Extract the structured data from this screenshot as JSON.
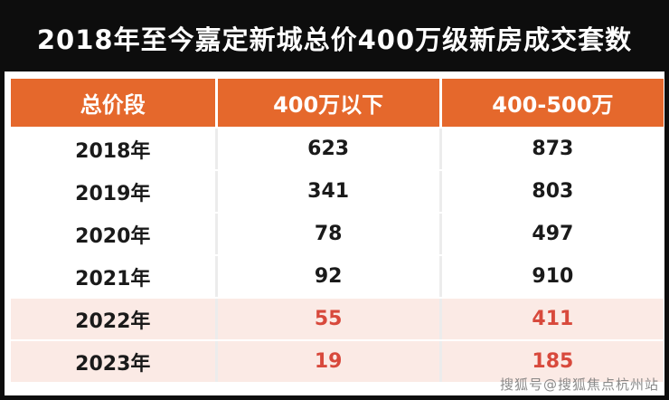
{
  "title": "2018年至今嘉定新城总价400万级新房成交套数",
  "watermark": "搜狐号@搜狐焦点杭州站",
  "colors": {
    "title_bg": "#0d0d0d",
    "header_bg": "#e5682c",
    "header_text": "#ffffff",
    "highlight_row_bg": "#fbeae5",
    "highlight_number_text": "#d8493c",
    "body_text": "#1a1a1a"
  },
  "chart_data": {
    "type": "table",
    "title": "2018年至今嘉定新城总价400万级新房成交套数",
    "columns": [
      "总价段",
      "400万以下",
      "400-500万"
    ],
    "rows": [
      {
        "cells": [
          "2018年",
          "623",
          "873"
        ],
        "highlight": false
      },
      {
        "cells": [
          "2019年",
          "341",
          "803"
        ],
        "highlight": false
      },
      {
        "cells": [
          "2020年",
          "78",
          "497"
        ],
        "highlight": false
      },
      {
        "cells": [
          "2021年",
          "92",
          "910"
        ],
        "highlight": false
      },
      {
        "cells": [
          "2022年",
          "55",
          "411"
        ],
        "highlight": true
      },
      {
        "cells": [
          "2023年",
          "19",
          "185"
        ],
        "highlight": true
      }
    ]
  }
}
